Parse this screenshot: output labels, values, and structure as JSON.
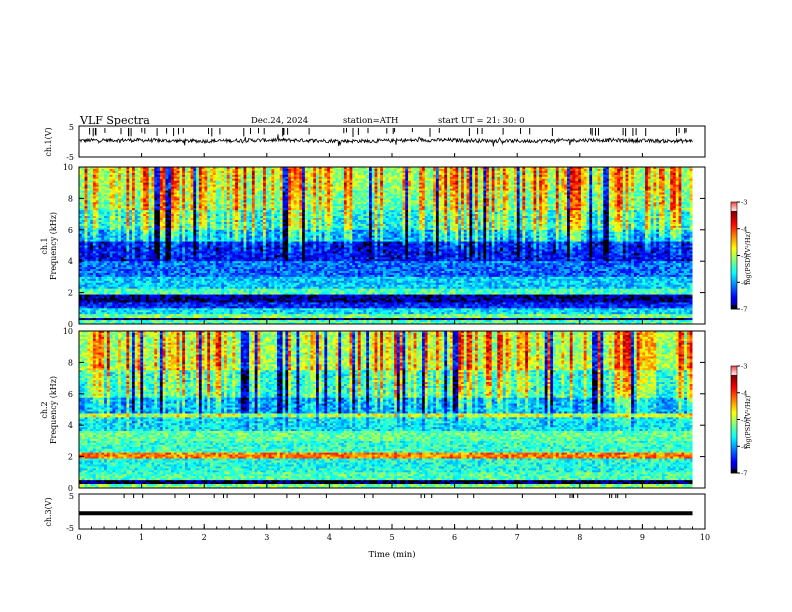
{
  "header": {
    "title": "VLF  Spectra",
    "date": "Dec.24, 2024",
    "station": "station=ATH",
    "start": "start  UT  =   21: 30: 0"
  },
  "chart_data": [
    {
      "type": "line",
      "name": "ch1-waveform",
      "ylabel": "ch.1(V)",
      "ylim": [
        -5,
        5
      ],
      "yticks": [
        "5",
        "-5"
      ],
      "xlim": [
        0,
        10
      ],
      "x_end_data": 9.8,
      "baseline": 0.3,
      "noise_amplitude": 0.6,
      "spikes_amplitude": 1.5
    },
    {
      "type": "heatmap",
      "name": "ch1-spectrogram",
      "ylabel": "ch.1",
      "ylabel2": "Frequency  (kHz)",
      "ylim": [
        0,
        10
      ],
      "yticks": [
        "0",
        "2",
        "4",
        "6",
        "8",
        "10"
      ],
      "xlim": [
        0,
        10
      ],
      "x_end_data": 9.8,
      "colorbar": {
        "label": "log(PSD)(V²/Hz)",
        "range": [
          -7,
          -3
        ],
        "ticks": [
          "-3",
          "-4",
          "-5",
          "-6",
          "-7"
        ]
      },
      "band_profile": [
        {
          "f": [
            0,
            0.2
          ],
          "level": -5.2
        },
        {
          "f": [
            0.2,
            0.4
          ],
          "level": -7.0
        },
        {
          "f": [
            0.4,
            0.6
          ],
          "level": -5.0
        },
        {
          "f": [
            0.6,
            1.0
          ],
          "level": -5.6
        },
        {
          "f": [
            1.0,
            1.4
          ],
          "level": -6.4
        },
        {
          "f": [
            1.4,
            1.9
          ],
          "level": -6.8
        },
        {
          "f": [
            1.9,
            2.3
          ],
          "level": -5.2
        },
        {
          "f": [
            2.3,
            3.0
          ],
          "level": -5.7
        },
        {
          "f": [
            3.0,
            4.0
          ],
          "level": -6.1
        },
        {
          "f": [
            4.0,
            5.2
          ],
          "level": -6.6
        },
        {
          "f": [
            5.2,
            6.0
          ],
          "level": -5.9
        },
        {
          "f": [
            6.0,
            7.2
          ],
          "level": -5.5
        },
        {
          "f": [
            7.2,
            8.5
          ],
          "level": -5.1
        },
        {
          "f": [
            8.5,
            10.0
          ],
          "level": -4.9
        }
      ]
    },
    {
      "type": "heatmap",
      "name": "ch2-spectrogram",
      "ylabel": "ch.2",
      "ylabel2": "Frequency  (kHz)",
      "ylim": [
        0,
        10
      ],
      "yticks": [
        "0",
        "2",
        "4",
        "6",
        "8",
        "10"
      ],
      "xlim": [
        0,
        10
      ],
      "x_end_data": 9.8,
      "colorbar": {
        "label": "log(PSD)(V²/Hz)",
        "range": [
          -7,
          -3
        ],
        "ticks": [
          "-3",
          "-4",
          "-5",
          "-6",
          "-7"
        ]
      },
      "band_profile": [
        {
          "f": [
            0,
            0.3
          ],
          "level": -5.0
        },
        {
          "f": [
            0.3,
            0.5
          ],
          "level": -7.0
        },
        {
          "f": [
            0.5,
            1.0
          ],
          "level": -5.2
        },
        {
          "f": [
            1.0,
            1.9
          ],
          "level": -5.4
        },
        {
          "f": [
            1.9,
            2.2
          ],
          "level": -4.0
        },
        {
          "f": [
            2.2,
            3.0
          ],
          "level": -5.3
        },
        {
          "f": [
            3.0,
            3.6
          ],
          "level": -5.1
        },
        {
          "f": [
            3.6,
            4.5
          ],
          "level": -5.6
        },
        {
          "f": [
            4.5,
            4.8
          ],
          "level": -4.8
        },
        {
          "f": [
            4.8,
            5.8
          ],
          "level": -5.9
        },
        {
          "f": [
            5.8,
            7.5
          ],
          "level": -5.4
        },
        {
          "f": [
            7.5,
            10.0
          ],
          "level": -4.9
        }
      ]
    },
    {
      "type": "line",
      "name": "ch3-waveform",
      "ylabel": "ch.3(V)",
      "xlabel": "Time  (min)",
      "ylim": [
        -5,
        5
      ],
      "yticks": [
        "5",
        "0",
        "-5"
      ],
      "xlim": [
        0,
        10
      ],
      "xticks": [
        "0",
        "1",
        "2",
        "3",
        "4",
        "5",
        "6",
        "7",
        "8",
        "9",
        "10"
      ],
      "x_end_data": 9.8,
      "baseline": -0.5
    }
  ]
}
